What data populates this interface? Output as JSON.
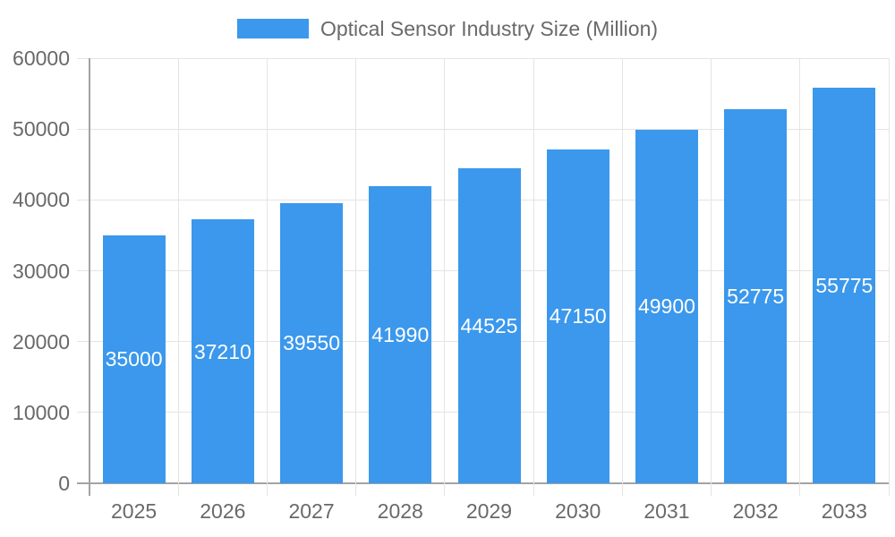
{
  "chart_data": {
    "type": "bar",
    "title": "Optical Sensor Industry Size (Million)",
    "legend": {
      "label": "Optical Sensor Industry Size (Million)",
      "position": "top"
    },
    "categories": [
      "2025",
      "2026",
      "2027",
      "2028",
      "2029",
      "2030",
      "2031",
      "2032",
      "2033"
    ],
    "values": [
      35000,
      37210,
      39550,
      41990,
      44525,
      47150,
      49900,
      52775,
      55775
    ],
    "bar_value_labels": [
      "35000",
      "37210",
      "39550",
      "41990",
      "44525",
      "47150",
      "49900",
      "52775",
      "55775"
    ],
    "xlabel": "",
    "ylabel": "",
    "ylim": [
      0,
      60000
    ],
    "y_ticks": [
      0,
      10000,
      20000,
      30000,
      40000,
      50000,
      60000
    ],
    "grid": true,
    "colors": {
      "bar": "#3b98ec",
      "grid_line": "#e4e4e4",
      "axis_line": "#a3a3a3",
      "axis_text": "#696969",
      "legend_text": "#696969",
      "bar_label_text": "#ffffff",
      "background": "#ffffff"
    }
  }
}
